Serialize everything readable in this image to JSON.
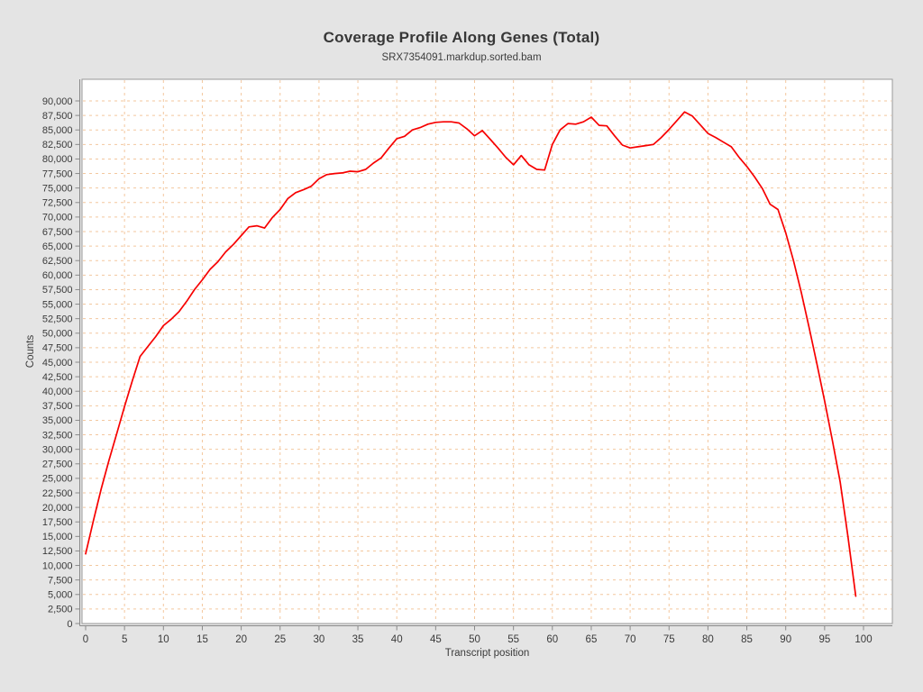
{
  "page": {
    "background_color": "#e4e4e4"
  },
  "header": {
    "title": "Coverage Profile Along Genes (Total)",
    "subtitle": "SRX7354091.markdup.sorted.bam"
  },
  "chart_data": {
    "type": "line",
    "title": "Coverage Profile Along Genes (Total)",
    "subtitle": "SRX7354091.markdup.sorted.bam",
    "xlabel": "Transcript position",
    "ylabel": "Counts",
    "xlim": [
      -0.5,
      104
    ],
    "ylim": [
      0,
      93500
    ],
    "x_tick_min": 0,
    "x_tick_max": 100,
    "x_tick_step": 5,
    "y_tick_min": 0,
    "y_tick_max": 90000,
    "y_tick_step": 2500,
    "grid": true,
    "grid_style": "dotted",
    "legend": "none",
    "colors": {
      "line": "#f70000",
      "grid": "#f3c79e",
      "axis": "#8a8a8a",
      "plot_border": "#999999",
      "plot_background": "#ffffff",
      "tick_label": "#3a3a3a",
      "axis_label": "#3a3a3a"
    },
    "series": [
      {
        "name": "SRX7354091.markdup.sorted.bam",
        "x": [
          0,
          1,
          2,
          3,
          4,
          5,
          6,
          7,
          8,
          9,
          10,
          11,
          12,
          13,
          14,
          15,
          16,
          17,
          18,
          19,
          20,
          21,
          22,
          23,
          24,
          25,
          26,
          27,
          28,
          29,
          30,
          31,
          32,
          33,
          34,
          35,
          36,
          37,
          38,
          39,
          40,
          41,
          42,
          43,
          44,
          45,
          46,
          47,
          48,
          49,
          50,
          51,
          52,
          53,
          54,
          55,
          56,
          57,
          58,
          59,
          60,
          61,
          62,
          63,
          64,
          65,
          66,
          67,
          68,
          69,
          70,
          71,
          72,
          73,
          74,
          75,
          76,
          77,
          78,
          79,
          80,
          81,
          82,
          83,
          84,
          85,
          86,
          87,
          88,
          89,
          90,
          91,
          92,
          93,
          94,
          95,
          96,
          97,
          98,
          99
        ],
        "values": [
          12000,
          17700,
          23200,
          28100,
          32700,
          37400,
          41800,
          46000,
          47700,
          49400,
          51300,
          52400,
          53700,
          55500,
          57500,
          59200,
          61000,
          62300,
          64000,
          65300,
          66800,
          68300,
          68500,
          68100,
          69900,
          71300,
          73200,
          74200,
          74700,
          75300,
          76600,
          77300,
          77500,
          77600,
          77900,
          77800,
          78200,
          79300,
          80200,
          81900,
          83500,
          83900,
          85000,
          85400,
          86000,
          86300,
          86400,
          86400,
          86200,
          85200,
          84000,
          84900,
          83400,
          81900,
          80300,
          79000,
          80600,
          79000,
          78200,
          78100,
          82500,
          85000,
          86100,
          86000,
          86400,
          87200,
          85800,
          85700,
          84000,
          82400,
          81900,
          82100,
          82300,
          82500,
          83700,
          85100,
          86600,
          88100,
          87400,
          85900,
          84400,
          83700,
          82900,
          82100,
          80300,
          78700,
          76900,
          74900,
          72200,
          71300,
          67300,
          62500,
          57000,
          51000,
          44800,
          38300,
          31500,
          24400,
          15000,
          4700
        ]
      }
    ]
  }
}
